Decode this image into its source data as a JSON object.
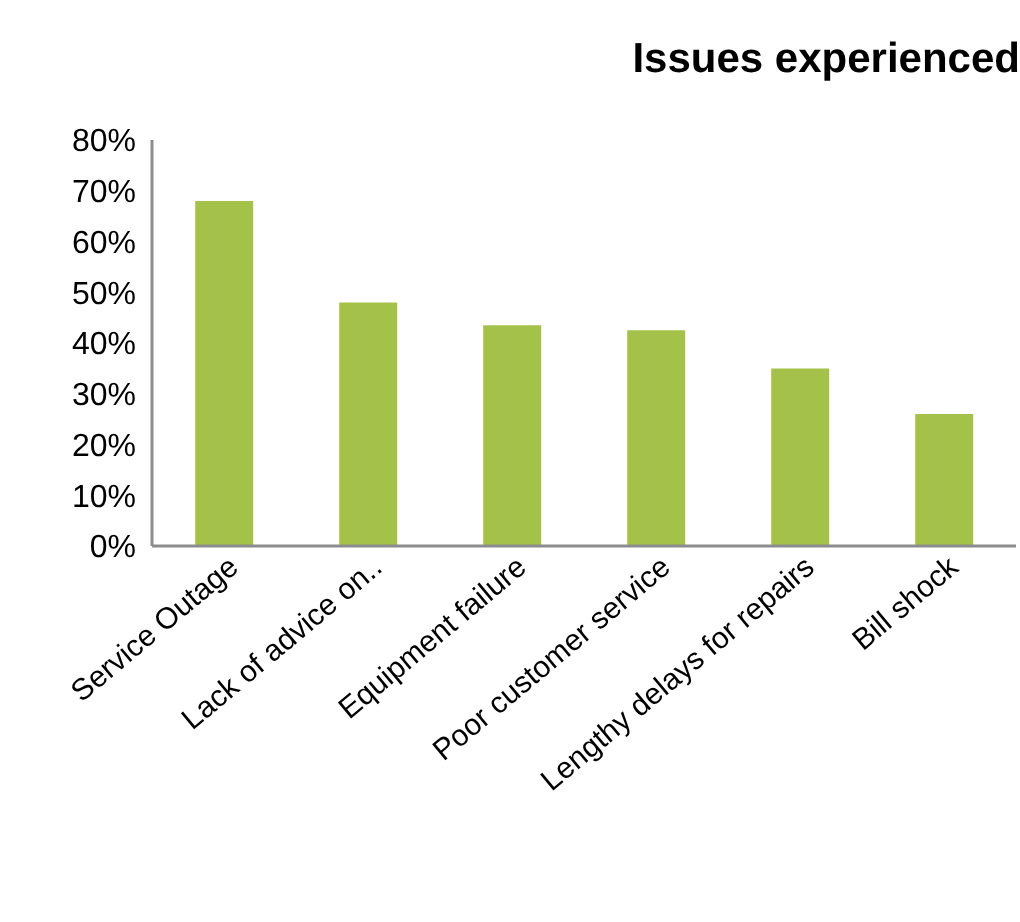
{
  "chart_data": {
    "type": "bar",
    "title": "Issues experienced",
    "categories": [
      "Service Outage",
      "Lack of advice on..",
      "Equipment failure",
      "Poor customer service",
      "Lengthy delays for repairs",
      "Bill shock"
    ],
    "values": [
      68,
      48,
      43.5,
      42.5,
      35,
      26
    ],
    "color": "#a4c249",
    "ylim": [
      0,
      80
    ],
    "yticks": [
      {
        "value": 0,
        "label": "0%"
      },
      {
        "value": 10,
        "label": "10%"
      },
      {
        "value": 20,
        "label": "20%"
      },
      {
        "value": 30,
        "label": "30%"
      },
      {
        "value": 40,
        "label": "40%"
      },
      {
        "value": 50,
        "label": "50%"
      },
      {
        "value": 60,
        "label": "60%"
      },
      {
        "value": 70,
        "label": "70%"
      },
      {
        "value": 80,
        "label": "80%"
      }
    ],
    "grid": false,
    "legend": false
  }
}
